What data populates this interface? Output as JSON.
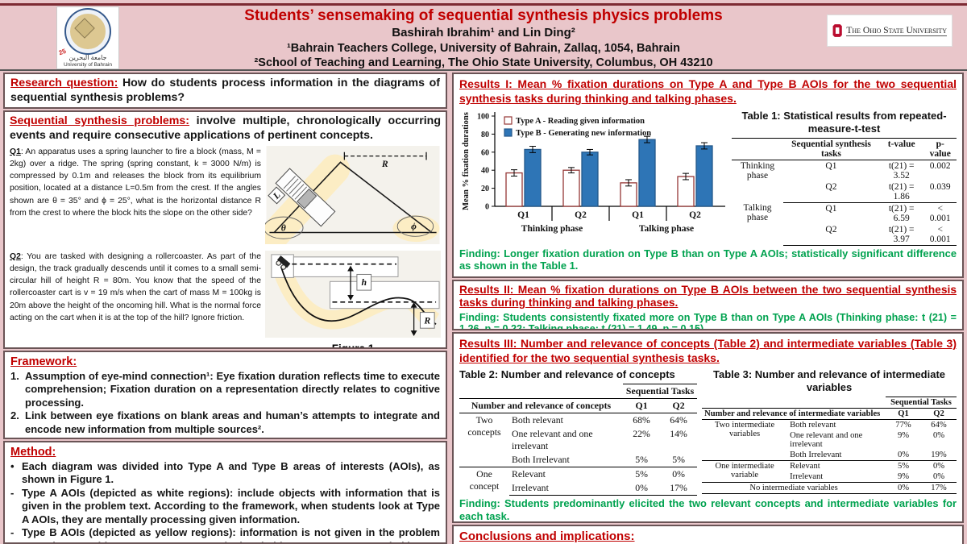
{
  "header": {
    "title": "Students’ sensemaking of sequential synthesis physics problems",
    "authors": "Bashirah Ibrahim¹ and Lin Ding²",
    "affil1": "¹Bahrain Teachers College, University of Bahrain, Zallaq, 1054, Bahrain",
    "affil2": "²School of Teaching and Learning, The Ohio State University, Columbus, OH 43210",
    "uob_arabic": "جامعة البحرين",
    "uob_english": "University of Bahrain",
    "uob_ribbon": "25",
    "osu_text": "The Ohio State University"
  },
  "left": {
    "research_question": {
      "heading": "Research question:",
      "text": "How do students process information in the diagrams of sequential synthesis problems?"
    },
    "ssp": {
      "heading": "Sequential synthesis problems:",
      "text": "involve multiple, chronologically occurring events and require consecutive applications of pertinent concepts."
    },
    "q1": {
      "label": "Q1",
      "text": ": An apparatus uses a spring launcher to fire a block (mass, M = 2kg) over a ridge. The spring (spring constant, k = 3000 N/m) is compressed by 0.1m and releases the block from its equilibrium position, located at a distance L=0.5m from the crest. If the angles shown are θ = 35° and ϕ = 25°, what is the horizontal distance R from the crest to where the block hits the slope on the other side?"
    },
    "q2": {
      "label": "Q2",
      "text": ": You are tasked with designing a rollercoaster. As part of the design, the track gradually descends until it comes to a small semi-circular hill of height R = 80m. You know that the speed of the rollercoaster cart is v = 19 m/s when the cart of mass M = 100kg is 20m above the height of the oncoming hill. What is the normal force acting on the cart when it is at the top of the hill? Ignore friction."
    },
    "figure_caption": "Figure 1",
    "diagram1": {
      "r_label": "R",
      "l_label": "L",
      "theta": "θ",
      "phi": "ϕ"
    },
    "diagram2": {
      "h_label": "h",
      "r_label": "R"
    },
    "framework": {
      "heading": "Framework:",
      "item1_num": "1.",
      "item1": "Assumption of eye-mind connection¹: Eye fixation duration reflects time to execute comprehension; Fixation duration on a representation directly relates to cognitive processing.",
      "item2_num": "2.",
      "item2": "Link between eye fixations on blank areas and human’s attempts to integrate and encode new information from multiple sources²."
    },
    "method": {
      "heading": "Method:",
      "b1_marker": "•",
      "b1": "Each diagram was divided into Type A and Type B areas of interests (AOIs), as shown in Figure 1.",
      "b2_marker": "-",
      "b2": "Type A AOIs (depicted as white regions): include objects with information that is given in the problem text. According to the framework, when students look at Type A AOIs, they are mentally processing given information.",
      "b3_marker": "-",
      "b3": "Type B AOIs (depicted as yellow regions): information is not given in the problem text. They are either empty spaces near depicted objects or spaces occupied by"
    }
  },
  "right": {
    "results1": {
      "heading": "Results I: Mean % fixation durations on Type A and Type B AOIs for the two sequential synthesis tasks during thinking and talking phases.",
      "finding": "Finding: Longer fixation duration on Type B than on Type A AOIs; statistically significant difference as shown in the Table 1."
    },
    "table1": {
      "title": "Table 1: Statistical results from repeated-measure-t-test",
      "cols": [
        "Sequential synthesis tasks",
        "t-value",
        "p-value"
      ],
      "g1": "Thinking phase",
      "g2": "Talking phase",
      "rows": [
        {
          "task": "Q1",
          "t": "t(21) = 3.52",
          "p": "0.002"
        },
        {
          "task": "Q2",
          "t": "t(21) = 1.86",
          "p": "0.039"
        },
        {
          "task": "Q1",
          "t": "t(21) = 6.59",
          "p": "< 0.001"
        },
        {
          "task": "Q2",
          "t": "t(21) = 3.97",
          "p": "< 0.001"
        }
      ]
    },
    "results2": {
      "heading": "Results II: Mean % fixation durations on Type B AOIs between the two sequential synthesis tasks during thinking and talking phases.",
      "finding": "Finding: Students consistently fixated more on Type B than on Type A AOIs (Thinking phase: t (21) = 1.26, p = 0.22; Talking phase: t (21) = 1.49, p = 0.15)."
    },
    "results3": {
      "heading": "Results III: Number and relevance of concepts (Table 2) and intermediate variables (Table 3) identified for the two sequential synthesis tasks.",
      "finding": "Finding: Students predominantly elicited the two relevant concepts and intermediate variables for each task."
    },
    "table2": {
      "title": "Table 2: Number and relevance of concepts",
      "span_header": "Sequential Tasks",
      "col_header": "Number and relevance of concepts",
      "q1": "Q1",
      "q2": "Q2",
      "g1": "Two concepts",
      "g2": "One concept",
      "rows": [
        {
          "label": "Both relevant",
          "q1": "68%",
          "q2": "64%"
        },
        {
          "label": "One relevant and one irrelevant",
          "q1": "22%",
          "q2": "14%"
        },
        {
          "label": "Both Irrelevant",
          "q1": "5%",
          "q2": "5%"
        },
        {
          "label": "Relevant",
          "q1": "5%",
          "q2": "0%"
        },
        {
          "label": "Irrelevant",
          "q1": "0%",
          "q2": "17%"
        }
      ]
    },
    "table3": {
      "title": "Table 3: Number and relevance of intermediate variables",
      "span_header": "Sequential Tasks",
      "col_header": "Number and relevance of intermediate variables",
      "q1": "Q1",
      "q2": "Q2",
      "g1": "Two intermediate variables",
      "g2": "One intermediate variable",
      "rows": [
        {
          "label": "Both relevant",
          "q1": "77%",
          "q2": "64%"
        },
        {
          "label": "One relevant and one irrelevant",
          "q1": "9%",
          "q2": "0%"
        },
        {
          "label": "Both Irrelevant",
          "q1": "0%",
          "q2": "19%"
        },
        {
          "label": "Relevant",
          "q1": "5%",
          "q2": "0%"
        },
        {
          "label": "Irrelevant",
          "q1": "9%",
          "q2": "0%"
        }
      ],
      "no_row": {
        "label": "No intermediate variables",
        "q1": "0%",
        "q2": "17%"
      }
    },
    "conclusions": {
      "heading": "Conclusions and implications:"
    }
  },
  "chart_data": {
    "type": "bar",
    "title": "",
    "xlabel": "",
    "ylabel": "Mean % fixation durations",
    "ylim": [
      0,
      100
    ],
    "yticks": [
      0,
      20,
      40,
      60,
      80,
      100
    ],
    "categories": [
      "Q1",
      "Q2",
      "Q1",
      "Q2"
    ],
    "group_labels": [
      "Thinking phase",
      "Talking phase"
    ],
    "series": [
      {
        "name": "Type A - Reading given information",
        "fill": "#ffffff",
        "border": "#953735",
        "values": [
          37,
          40,
          26,
          33
        ],
        "errors": [
          3.5,
          3,
          3.5,
          3.5
        ]
      },
      {
        "name": "Type B - Generating new information",
        "fill": "#2e75b6",
        "border": "#24588a",
        "values": [
          63,
          60,
          74,
          67
        ],
        "errors": [
          3.5,
          3,
          3.5,
          3.5
        ]
      }
    ],
    "legend_position": "top-left",
    "grid": false
  },
  "colors": {
    "accent_red": "#c00000",
    "finding_green": "#00a24f",
    "background_pink": "#e9c6ca",
    "bar_blue": "#2e75b6",
    "bar_a_border": "#953735",
    "aoi_yellow": "#fcedc4"
  }
}
